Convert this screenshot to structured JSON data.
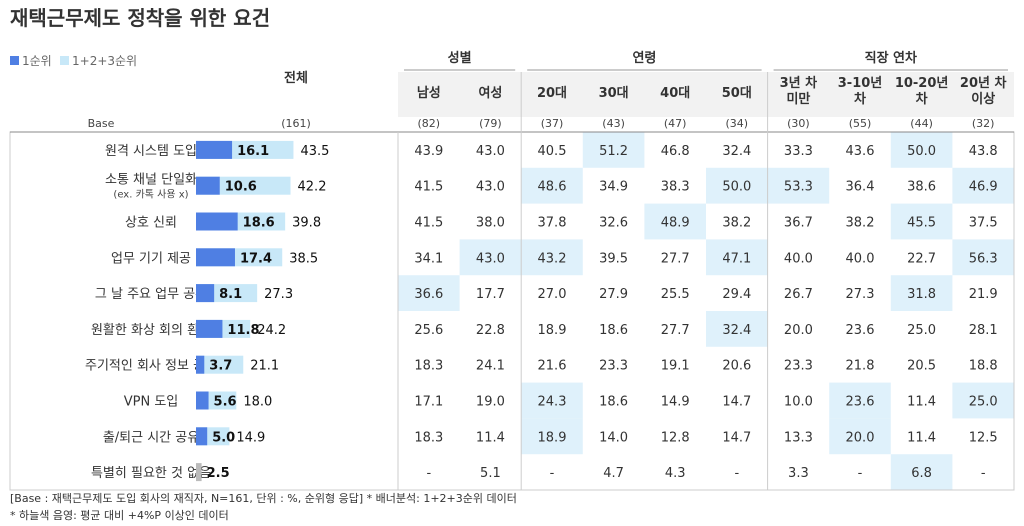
{
  "chart_data": {
    "type": "table",
    "title": "재택근무제도 정착을 위한 요건",
    "legend": [
      {
        "label": "1순위",
        "color": "#4f7fe3"
      },
      {
        "label": "1+2+3순위",
        "color": "#c8e8f8"
      }
    ],
    "overall_header": "전체",
    "groups": [
      {
        "name": "성별",
        "columns": [
          "남성",
          "여성"
        ]
      },
      {
        "name": "연령",
        "columns": [
          "20대",
          "30대",
          "40대",
          "50대"
        ]
      },
      {
        "name": "직장 연차",
        "columns": [
          "3년 차\n미만",
          "3-10년\n차",
          "10-20년\n차",
          "20년 차\n이상"
        ]
      }
    ],
    "base_label": "Base",
    "base_overall": "(161)",
    "base_values": [
      "(82)",
      "(79)",
      "(37)",
      "(43)",
      "(47)",
      "(34)",
      "(30)",
      "(55)",
      "(44)",
      "(32)"
    ],
    "rows": [
      {
        "label": "원격 시스템 도입",
        "first": "16.1",
        "total": "43.5",
        "values": [
          "43.9",
          "43.0",
          "40.5",
          "51.2",
          "46.8",
          "32.4",
          "33.3",
          "43.6",
          "50.0",
          "43.8"
        ],
        "highlight": [
          3,
          8
        ]
      },
      {
        "label": "소통 채널 단일화",
        "sublabel": "(ex. 카톡 사용 x)",
        "first": "10.6",
        "total": "42.2",
        "values": [
          "41.5",
          "43.0",
          "48.6",
          "34.9",
          "38.3",
          "50.0",
          "53.3",
          "36.4",
          "38.6",
          "46.9"
        ],
        "highlight": [
          2,
          5,
          6,
          9
        ]
      },
      {
        "label": "상호 신뢰",
        "first": "18.6",
        "total": "39.8",
        "values": [
          "41.5",
          "38.0",
          "37.8",
          "32.6",
          "48.9",
          "38.2",
          "36.7",
          "38.2",
          "45.5",
          "37.5"
        ],
        "highlight": [
          4,
          8
        ]
      },
      {
        "label": "업무 기기 제공",
        "first": "17.4",
        "total": "38.5",
        "values": [
          "34.1",
          "43.0",
          "43.2",
          "39.5",
          "27.7",
          "47.1",
          "40.0",
          "40.0",
          "22.7",
          "56.3"
        ],
        "highlight": [
          1,
          2,
          5,
          9
        ]
      },
      {
        "label": "그 날 주요 업무 공유",
        "first": "8.1",
        "total": "27.3",
        "values": [
          "36.6",
          "17.7",
          "27.0",
          "27.9",
          "25.5",
          "29.4",
          "26.7",
          "27.3",
          "31.8",
          "21.9"
        ],
        "highlight": [
          0,
          8
        ]
      },
      {
        "label": "원활한 화상 회의 환경",
        "first": "11.8",
        "total": "24.2",
        "values": [
          "25.6",
          "22.8",
          "18.9",
          "18.6",
          "27.7",
          "32.4",
          "20.0",
          "23.6",
          "25.0",
          "28.1"
        ],
        "highlight": [
          5
        ]
      },
      {
        "label": "주기적인 회사 정보 공유",
        "first": "3.7",
        "total": "21.1",
        "values": [
          "18.3",
          "24.1",
          "21.6",
          "23.3",
          "19.1",
          "20.6",
          "23.3",
          "21.8",
          "20.5",
          "18.8"
        ],
        "highlight": []
      },
      {
        "label": "VPN 도입",
        "first": "5.6",
        "total": "18.0",
        "values": [
          "17.1",
          "19.0",
          "24.3",
          "18.6",
          "14.9",
          "14.7",
          "10.0",
          "23.6",
          "11.4",
          "25.0"
        ],
        "highlight": [
          2,
          7,
          9
        ]
      },
      {
        "label": "출/퇴근 시간 공유",
        "first": "5.0",
        "total": "14.9",
        "values": [
          "18.3",
          "11.4",
          "18.9",
          "14.0",
          "12.8",
          "14.7",
          "13.3",
          "20.0",
          "11.4",
          "12.5"
        ],
        "highlight": [
          2,
          7
        ]
      },
      {
        "label": "특별히 필요한 것 없음",
        "first": "2.5",
        "total": "",
        "values": [
          "-",
          "5.1",
          "-",
          "4.7",
          "4.3",
          "-",
          "3.3",
          "-",
          "6.8",
          "-"
        ],
        "highlight": [
          8
        ],
        "muted": true
      }
    ],
    "bar_scale_max": 50,
    "colors": {
      "first_bar": "#4f7fe3",
      "total_bar": "#c8e8f8",
      "muted_bar": "#bbbbbb",
      "header_bg": "#f2f2f2",
      "highlight": "#dff1fb",
      "border": "#cccccc"
    },
    "footnotes": [
      "[Base : 재택근무제도 도입 회사의 재직자, N=161, 단위 : %, 순위형 응답] * 배너분석: 1+2+3순위 데이터",
      "* 하늘색 음영: 평균 대비 +4%P 이상인 데이터"
    ]
  }
}
